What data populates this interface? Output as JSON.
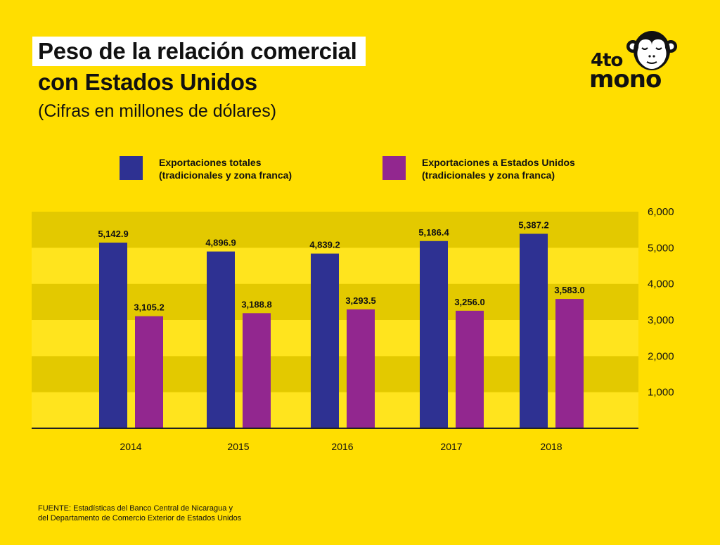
{
  "header": {
    "title_line1": "Peso de la relación comercial",
    "title_line2": "con Estados Unidos",
    "subtitle": "(Cifras en millones de dólares)"
  },
  "logo": {
    "top": "4to",
    "bottom": "mono",
    "icon": "monkey-face-icon"
  },
  "colors": {
    "background": "#FFDE00",
    "band_dark": "#E3C900",
    "band_light": "#FFE41E",
    "series_total": "#2E3192",
    "series_us": "#92278F"
  },
  "chart_data": {
    "type": "bar",
    "title": "Peso de la relación comercial con Estados Unidos",
    "subtitle": "(Cifras en millones de dólares)",
    "xlabel": "",
    "ylabel": "",
    "categories": [
      "2014",
      "2015",
      "2016",
      "2017",
      "2018"
    ],
    "series": [
      {
        "name": "Exportaciones totales (tradicionales y zona franca)",
        "legend_line1": "Exportaciones totales",
        "legend_line2": "(tradicionales y zona franca)",
        "color": "#2E3192",
        "values": [
          5142.9,
          4896.9,
          4839.2,
          5186.4,
          5387.2
        ],
        "labels": [
          "5,142.9",
          "4,896.9",
          "4,839.2",
          "5,186.4",
          "5,387.2"
        ]
      },
      {
        "name": "Exportaciones a Estados Unidos (tradicionales y zona franca)",
        "legend_line1": "Exportaciones a Estados Unidos",
        "legend_line2": "(tradicionales y zona franca)",
        "color": "#92278F",
        "values": [
          3105.2,
          3188.8,
          3293.5,
          3256.0,
          3583.0
        ],
        "labels": [
          "3,105.2",
          "3,188.8",
          "3,293.5",
          "3,256.0",
          "3,583.0"
        ]
      }
    ],
    "ylim": [
      0,
      6000
    ],
    "yticks": [
      1000,
      2000,
      3000,
      4000,
      5000,
      6000
    ],
    "ytick_labels": [
      "1,000",
      "2,000",
      "3,000",
      "4,000",
      "5,000",
      "6,000"
    ],
    "y_axis_side": "right",
    "grid": "alternating horizontal bands",
    "legend_position": "top"
  },
  "footer": {
    "line1": "FUENTE: Estadísticas del Banco Central de Nicaragua y",
    "line2": "del Departamento de Comercio Exterior de Estados Unidos"
  }
}
